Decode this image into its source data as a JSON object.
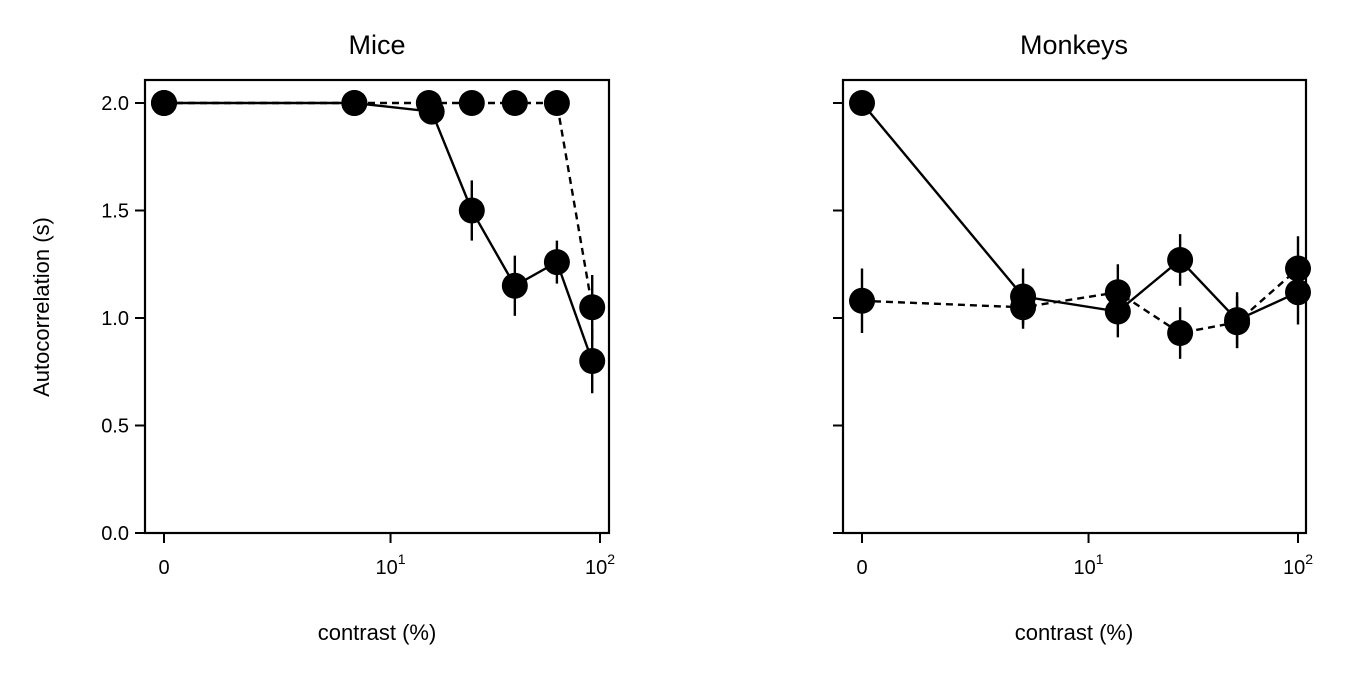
{
  "chart_data": [
    {
      "type": "line",
      "title": "Mice",
      "xlabel": "contrast (%)",
      "ylabel": "Autocorrelation (s)",
      "x_scale": "symlog",
      "ylim": [
        0.0,
        2.1
      ],
      "xticks": [
        {
          "value": 0,
          "base": "0",
          "exp": ""
        },
        {
          "value": 10,
          "base": "10",
          "exp": "1"
        },
        {
          "value": 100,
          "base": "10",
          "exp": "2"
        }
      ],
      "yticks": [
        {
          "value": 0.0,
          "label": "0.0"
        },
        {
          "value": 0.5,
          "label": "0.5"
        },
        {
          "value": 1.0,
          "label": "1.0"
        },
        {
          "value": 1.5,
          "label": "1.5"
        },
        {
          "value": 2.0,
          "label": "2.0"
        }
      ],
      "show_ytick_labels": true,
      "grid": false,
      "series": [
        {
          "style": "solid",
          "x": [
            0,
            6.5,
            16,
            25,
            40,
            63,
            92
          ],
          "y": [
            2.0,
            2.0,
            1.96,
            1.5,
            1.15,
            1.26,
            0.8
          ],
          "err": [
            0,
            0,
            0.04,
            0.14,
            0.14,
            0.1,
            0.15
          ]
        },
        {
          "style": "dashed",
          "x": [
            0,
            6.5,
            15.5,
            25,
            40,
            63,
            92
          ],
          "y": [
            2.0,
            2.0,
            2.0,
            2.0,
            2.0,
            2.0,
            1.05
          ],
          "err": [
            0,
            0,
            0,
            0,
            0,
            0,
            0.15
          ]
        }
      ]
    },
    {
      "type": "line",
      "title": "Monkeys",
      "xlabel": "contrast (%)",
      "ylabel": "",
      "x_scale": "symlog",
      "ylim": [
        0.0,
        2.1
      ],
      "xticks": [
        {
          "value": 0,
          "base": "0",
          "exp": ""
        },
        {
          "value": 10,
          "base": "10",
          "exp": "1"
        },
        {
          "value": 100,
          "base": "10",
          "exp": "2"
        }
      ],
      "yticks": [
        {
          "value": 0.0,
          "label": ""
        },
        {
          "value": 0.5,
          "label": ""
        },
        {
          "value": 1.0,
          "label": ""
        },
        {
          "value": 1.5,
          "label": ""
        },
        {
          "value": 2.0,
          "label": ""
        }
      ],
      "show_ytick_labels": false,
      "grid": false,
      "series": [
        {
          "style": "solid",
          "x": [
            0,
            4.5,
            14,
            28,
            52,
            100
          ],
          "y": [
            2.0,
            1.1,
            1.03,
            1.27,
            0.99,
            1.12
          ],
          "err": [
            0,
            0.13,
            0.12,
            0.12,
            0.13,
            0.15
          ]
        },
        {
          "style": "dashed",
          "x": [
            0,
            4.5,
            14,
            28,
            52,
            100
          ],
          "y": [
            1.08,
            1.05,
            1.12,
            0.93,
            0.98,
            1.23
          ],
          "err": [
            0.15,
            0.1,
            0.13,
            0.12,
            0.12,
            0.15
          ]
        }
      ]
    }
  ]
}
